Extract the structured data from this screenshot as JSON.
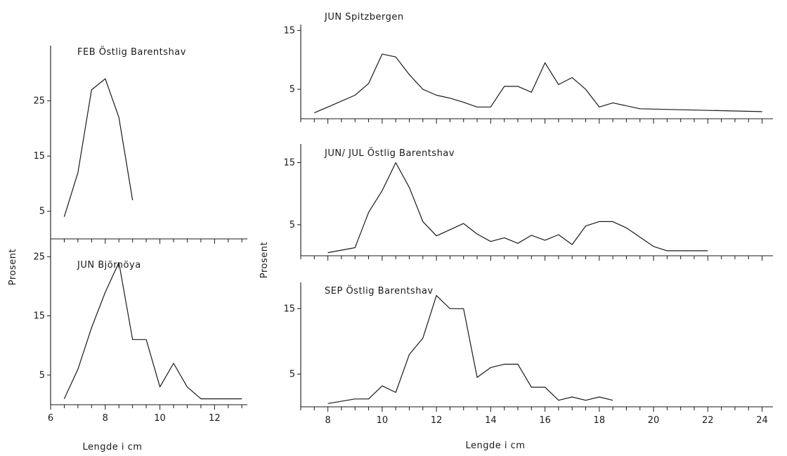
{
  "figure": {
    "left_ylabel": "Prosent",
    "right_ylabel": "Prosent",
    "left_xlabel": "Lengde  i  cm",
    "right_xlabel": "Lengde  i  cm"
  },
  "chart_data": [
    {
      "type": "line",
      "title": "FEB      Östlig   Barentshav",
      "xlabel": "",
      "ylabel": "Prosent",
      "xlim": [
        6,
        13.2
      ],
      "ylim": [
        0,
        35
      ],
      "yticks": [
        5,
        15,
        25
      ],
      "xticks": [],
      "grid": false,
      "series": [
        {
          "x": [
            6.5,
            7.0,
            7.5,
            8.0,
            8.5,
            9.0
          ],
          "y": [
            4,
            12,
            27,
            29,
            22,
            7
          ]
        }
      ]
    },
    {
      "type": "line",
      "title": "JUN        Björnöya",
      "xlabel": "Lengde  i  cm",
      "ylabel": "Prosent",
      "xlim": [
        6,
        13.2
      ],
      "ylim": [
        0,
        28
      ],
      "yticks": [
        5,
        15,
        25
      ],
      "xticks": [
        6,
        8,
        10,
        12
      ],
      "grid": false,
      "series": [
        {
          "x": [
            6.5,
            7.0,
            7.5,
            8.0,
            8.5,
            9.0,
            9.5,
            10.0,
            10.5,
            11.0,
            11.5,
            12.0,
            12.5,
            13.0
          ],
          "y": [
            1,
            6,
            13,
            19,
            24,
            11,
            11,
            3,
            7,
            3,
            1,
            1,
            1,
            1
          ]
        }
      ]
    },
    {
      "type": "line",
      "title": "JUN        Spitzbergen",
      "xlabel": "",
      "ylabel": "Prosent",
      "xlim": [
        7,
        24.4
      ],
      "ylim": [
        0,
        16
      ],
      "yticks": [
        5,
        15
      ],
      "xticks": [],
      "grid": false,
      "series": [
        {
          "x": [
            7.5,
            8.0,
            9.0,
            9.5,
            10.0,
            10.5,
            11.0,
            11.5,
            12.0,
            12.5,
            13.0,
            13.5,
            14.0,
            14.5,
            15.0,
            15.5,
            16.0,
            16.5,
            17.0,
            17.5,
            18.0,
            18.5,
            19.5,
            24.0
          ],
          "y": [
            1,
            2,
            4,
            6,
            11,
            10.5,
            7.5,
            5,
            4,
            3.5,
            2.8,
            2,
            2,
            5.5,
            5.5,
            4.5,
            9.5,
            5.8,
            7,
            5,
            2,
            2.7,
            1.7,
            1.2
          ]
        }
      ]
    },
    {
      "type": "line",
      "title": "JUN/ JUL   Östlig  Barentshav",
      "xlabel": "",
      "ylabel": "Prosent",
      "xlim": [
        7,
        24.4
      ],
      "ylim": [
        0,
        18
      ],
      "yticks": [
        5,
        15
      ],
      "xticks": [],
      "grid": false,
      "series": [
        {
          "x": [
            8.0,
            9.0,
            9.5,
            10.0,
            10.5,
            11.0,
            11.5,
            12.0,
            12.5,
            13.0,
            13.5,
            14.0,
            14.5,
            15.0,
            15.5,
            16.0,
            16.5,
            17.0,
            17.5,
            18.0,
            18.5,
            19.0,
            20.0,
            20.5,
            22.0
          ],
          "y": [
            0.5,
            1.3,
            7,
            10.5,
            15,
            11,
            5.5,
            3.2,
            4.2,
            5.2,
            3.5,
            2.3,
            2.9,
            2,
            3.3,
            2.5,
            3.4,
            1.8,
            4.8,
            5.5,
            5.5,
            4.5,
            1.5,
            0.8,
            0.8
          ]
        }
      ]
    },
    {
      "type": "line",
      "title": "SEP      Östlig  Barentshav",
      "xlabel": "Lengde  i  cm",
      "ylabel": "Prosent",
      "xlim": [
        7,
        24.4
      ],
      "ylim": [
        0,
        19
      ],
      "yticks": [
        5,
        15
      ],
      "xticks": [
        8,
        10,
        12,
        14,
        16,
        18,
        20,
        22,
        24
      ],
      "grid": false,
      "series": [
        {
          "x": [
            8.0,
            9.0,
            9.5,
            10.0,
            10.5,
            11.0,
            11.5,
            12.0,
            12.5,
            13.0,
            13.5,
            14.0,
            14.5,
            15.0,
            15.5,
            16.0,
            16.5,
            17.0,
            17.5,
            18.0,
            18.5
          ],
          "y": [
            0.5,
            1.2,
            1.2,
            3.2,
            2.2,
            8,
            10.5,
            17,
            15,
            15,
            4.5,
            6,
            6.5,
            6.5,
            3,
            3,
            1,
            1.5,
            1,
            1.5,
            1
          ]
        }
      ]
    }
  ]
}
